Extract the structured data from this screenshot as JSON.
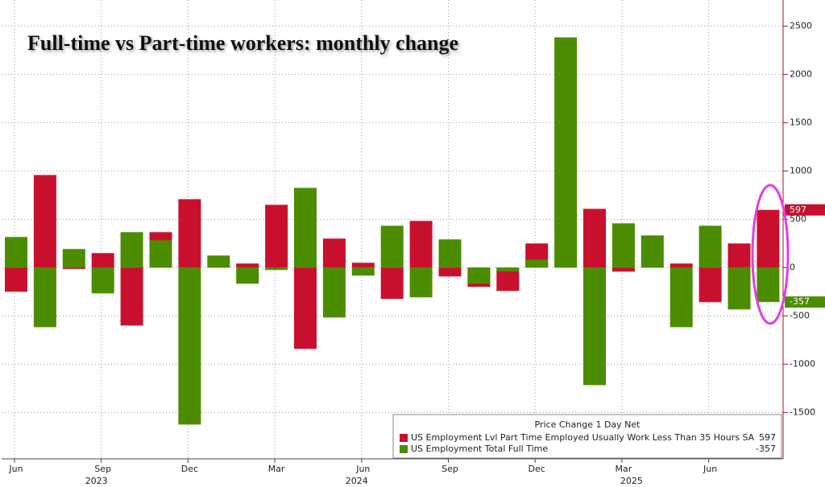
{
  "chart_data": {
    "type": "bar",
    "title": "Full-time vs Part-time workers: monthly change",
    "categories": [
      "Jun",
      null,
      null,
      "Sep",
      null,
      null,
      "Dec",
      null,
      null,
      "Mar",
      null,
      null,
      "Jun",
      null,
      null,
      "Sep",
      null,
      null,
      "Dec",
      null,
      null,
      "Mar",
      null,
      null,
      "Jun",
      null,
      null
    ],
    "years": [
      "2023",
      "2024",
      "2025"
    ],
    "legend_title": "Price Change 1 Day Net",
    "series": [
      {
        "name": "US Employment Lvl Part Time Employed Usually Work Less Than 35 Hours SA",
        "color": "#c8102e",
        "values": [
          -250,
          958,
          -15,
          150,
          -600,
          367,
          708,
          15,
          42,
          650,
          -842,
          300,
          50,
          -325,
          483,
          -92,
          -200,
          -242,
          250,
          15,
          608,
          -42,
          10,
          42,
          -358,
          250,
          597
        ]
      },
      {
        "name": "US Employment Total Full Time",
        "color": "#4c8c00",
        "values": [
          317,
          -617,
          192,
          -267,
          367,
          283,
          -1625,
          125,
          -167,
          -25,
          825,
          -517,
          -83,
          433,
          -308,
          292,
          -167,
          -40,
          83,
          2383,
          -1217,
          458,
          333,
          -617,
          433,
          -433,
          -357
        ]
      }
    ],
    "ylim": [
      -1980,
      2770
    ],
    "yticks": [
      -1500,
      -1000,
      -500,
      0,
      500,
      1000,
      1500,
      2000,
      2500
    ],
    "grid": true
  }
}
